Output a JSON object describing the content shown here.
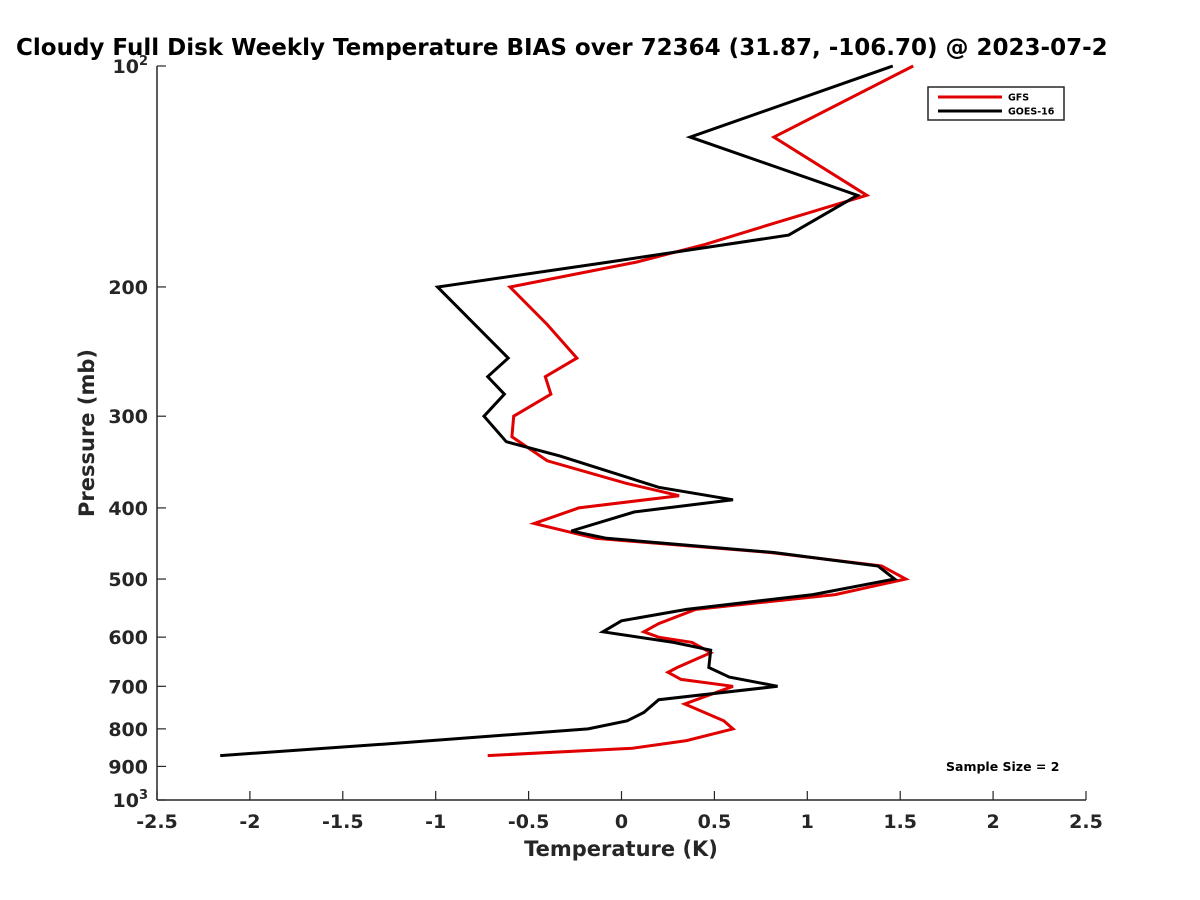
{
  "chart_data": {
    "type": "line",
    "title": "Cloudy Full Disk Weekly Temperature BIAS over 72364 (31.87, -106.70) @ 2023-07-2",
    "xlabel": "Temperature (K)",
    "ylabel": "Pressure (mb)",
    "xlim": [
      -2.5,
      2.5
    ],
    "ylim": [
      100,
      1000
    ],
    "y_scale": "log",
    "y_reversed": true,
    "x_ticks": [
      {
        "value": -2.5,
        "label": "-2.5"
      },
      {
        "value": -2,
        "label": "-2"
      },
      {
        "value": -1.5,
        "label": "-1.5"
      },
      {
        "value": -1,
        "label": "-1"
      },
      {
        "value": -0.5,
        "label": "-0.5"
      },
      {
        "value": 0,
        "label": "0"
      },
      {
        "value": 0.5,
        "label": "0.5"
      },
      {
        "value": 1,
        "label": "1"
      },
      {
        "value": 1.5,
        "label": "1.5"
      },
      {
        "value": 2,
        "label": "2"
      },
      {
        "value": 2.5,
        "label": "2.5"
      }
    ],
    "y_ticks": [
      {
        "value": 100,
        "base": "10",
        "exp": "2"
      },
      {
        "value": 200,
        "label": "200"
      },
      {
        "value": 300,
        "label": "300"
      },
      {
        "value": 400,
        "label": "400"
      },
      {
        "value": 500,
        "label": "500"
      },
      {
        "value": 600,
        "label": "600"
      },
      {
        "value": 700,
        "label": "700"
      },
      {
        "value": 800,
        "label": "800"
      },
      {
        "value": 900,
        "label": "900"
      },
      {
        "value": 1000,
        "base": "10",
        "exp": "3"
      }
    ],
    "grid": false,
    "legend_position": "top-right",
    "annotation": "Sample Size = 2",
    "series": [
      {
        "name": "GFS",
        "color": "#e00000",
        "points": [
          {
            "x": 1.57,
            "y": 100
          },
          {
            "x": 0.82,
            "y": 125
          },
          {
            "x": 1.32,
            "y": 150
          },
          {
            "x": 0.78,
            "y": 165
          },
          {
            "x": 0.45,
            "y": 175
          },
          {
            "x": 0.08,
            "y": 185
          },
          {
            "x": -0.6,
            "y": 200
          },
          {
            "x": -0.4,
            "y": 225
          },
          {
            "x": -0.24,
            "y": 250
          },
          {
            "x": -0.41,
            "y": 265
          },
          {
            "x": -0.38,
            "y": 280
          },
          {
            "x": -0.58,
            "y": 300
          },
          {
            "x": -0.59,
            "y": 320
          },
          {
            "x": -0.4,
            "y": 345
          },
          {
            "x": 0.02,
            "y": 370
          },
          {
            "x": 0.31,
            "y": 385
          },
          {
            "x": -0.23,
            "y": 400
          },
          {
            "x": -0.47,
            "y": 420
          },
          {
            "x": -0.14,
            "y": 440
          },
          {
            "x": 0.8,
            "y": 460
          },
          {
            "x": 1.4,
            "y": 480
          },
          {
            "x": 1.53,
            "y": 500
          },
          {
            "x": 1.15,
            "y": 525
          },
          {
            "x": 0.4,
            "y": 550
          },
          {
            "x": 0.2,
            "y": 575
          },
          {
            "x": 0.12,
            "y": 590
          },
          {
            "x": 0.2,
            "y": 600
          },
          {
            "x": 0.38,
            "y": 610
          },
          {
            "x": 0.48,
            "y": 630
          },
          {
            "x": 0.3,
            "y": 660
          },
          {
            "x": 0.25,
            "y": 670
          },
          {
            "x": 0.32,
            "y": 685
          },
          {
            "x": 0.6,
            "y": 700
          },
          {
            "x": 0.34,
            "y": 740
          },
          {
            "x": 0.55,
            "y": 780
          },
          {
            "x": 0.6,
            "y": 800
          },
          {
            "x": 0.35,
            "y": 830
          },
          {
            "x": 0.06,
            "y": 850
          },
          {
            "x": -0.72,
            "y": 870
          }
        ]
      },
      {
        "name": "GOES-16",
        "color": "#000000",
        "points": [
          {
            "x": 1.46,
            "y": 100
          },
          {
            "x": 0.37,
            "y": 125
          },
          {
            "x": 1.27,
            "y": 150
          },
          {
            "x": 0.9,
            "y": 170
          },
          {
            "x": -0.07,
            "y": 185
          },
          {
            "x": -0.99,
            "y": 200
          },
          {
            "x": -0.61,
            "y": 250
          },
          {
            "x": -0.72,
            "y": 265
          },
          {
            "x": -0.63,
            "y": 280
          },
          {
            "x": -0.74,
            "y": 300
          },
          {
            "x": -0.62,
            "y": 325
          },
          {
            "x": -0.33,
            "y": 340
          },
          {
            "x": 0.2,
            "y": 375
          },
          {
            "x": 0.6,
            "y": 390
          },
          {
            "x": 0.07,
            "y": 405
          },
          {
            "x": -0.27,
            "y": 430
          },
          {
            "x": -0.08,
            "y": 440
          },
          {
            "x": 0.82,
            "y": 460
          },
          {
            "x": 1.38,
            "y": 480
          },
          {
            "x": 1.47,
            "y": 500
          },
          {
            "x": 1.03,
            "y": 525
          },
          {
            "x": 0.35,
            "y": 550
          },
          {
            "x": 0.0,
            "y": 570
          },
          {
            "x": -0.1,
            "y": 590
          },
          {
            "x": 0.28,
            "y": 610
          },
          {
            "x": 0.48,
            "y": 625
          },
          {
            "x": 0.47,
            "y": 660
          },
          {
            "x": 0.58,
            "y": 680
          },
          {
            "x": 0.84,
            "y": 700
          },
          {
            "x": 0.2,
            "y": 730
          },
          {
            "x": 0.12,
            "y": 760
          },
          {
            "x": 0.03,
            "y": 780
          },
          {
            "x": -0.18,
            "y": 800
          },
          {
            "x": -1.3,
            "y": 840
          },
          {
            "x": -2.16,
            "y": 870
          }
        ]
      }
    ]
  }
}
